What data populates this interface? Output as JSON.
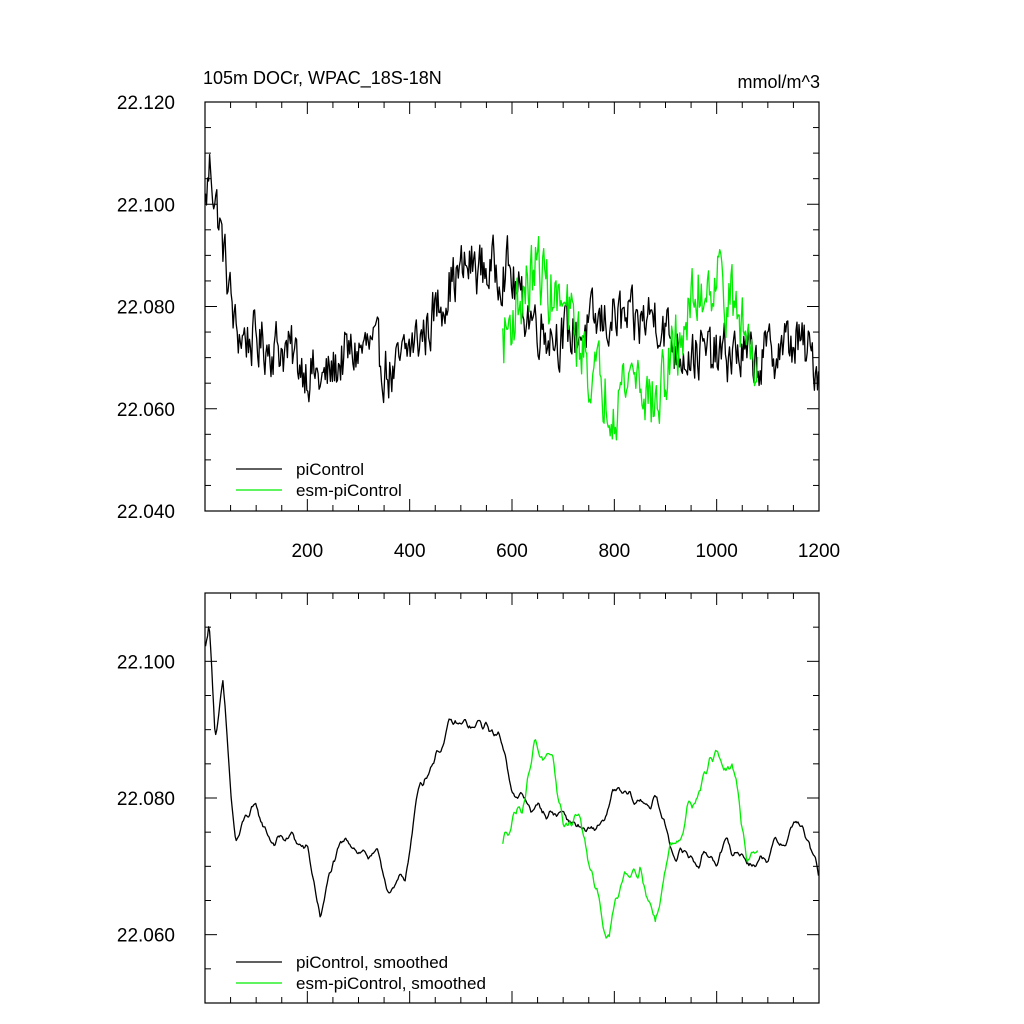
{
  "chart_data": [
    {
      "type": "line",
      "title": "105m DOCr, WPAC_18S-18N",
      "units": "mmol/m^3",
      "xlim": [
        0,
        1200
      ],
      "ylim": [
        22.04,
        22.12
      ],
      "xticks": [
        200,
        400,
        600,
        800,
        1000,
        1200
      ],
      "xtick_labels": [
        "200",
        "400",
        "600",
        "800",
        "1000",
        "1200"
      ],
      "yticks": [
        22.04,
        22.06,
        22.08,
        22.1,
        22.12
      ],
      "ytick_labels": [
        "22.040",
        "22.060",
        "22.080",
        "22.100",
        "22.120"
      ],
      "legend_position": "bottom-left",
      "series": [
        {
          "name": "piControl",
          "color": "#000000",
          "x_start": 1,
          "x_end": 1200,
          "keypoints": [
            [
              1,
              22.1
            ],
            [
              10,
              22.108
            ],
            [
              30,
              22.095
            ],
            [
              60,
              22.075
            ],
            [
              100,
              22.073
            ],
            [
              150,
              22.072
            ],
            [
              200,
              22.068
            ],
            [
              230,
              22.065
            ],
            [
              270,
              22.07
            ],
            [
              320,
              22.072
            ],
            [
              370,
              22.066
            ],
            [
              400,
              22.072
            ],
            [
              430,
              22.075
            ],
            [
              480,
              22.085
            ],
            [
              520,
              22.088
            ],
            [
              560,
              22.087
            ],
            [
              590,
              22.088
            ],
            [
              620,
              22.08
            ],
            [
              660,
              22.076
            ],
            [
              700,
              22.074
            ],
            [
              760,
              22.076
            ],
            [
              800,
              22.078
            ],
            [
              840,
              22.076
            ],
            [
              880,
              22.079
            ],
            [
              920,
              22.072
            ],
            [
              960,
              22.071
            ],
            [
              1000,
              22.07
            ],
            [
              1040,
              22.071
            ],
            [
              1080,
              22.069
            ],
            [
              1120,
              22.072
            ],
            [
              1160,
              22.073
            ],
            [
              1200,
              22.068
            ]
          ],
          "noise_amplitude": 0.0065
        },
        {
          "name": "esm-piControl",
          "color": "#00ee00",
          "x_start": 582,
          "x_end": 1080,
          "keypoints": [
            [
              582,
              22.073
            ],
            [
              600,
              22.078
            ],
            [
              620,
              22.082
            ],
            [
              650,
              22.088
            ],
            [
              680,
              22.082
            ],
            [
              720,
              22.076
            ],
            [
              760,
              22.066
            ],
            [
              800,
              22.062
            ],
            [
              840,
              22.068
            ],
            [
              880,
              22.06
            ],
            [
              920,
              22.072
            ],
            [
              960,
              22.082
            ],
            [
              1000,
              22.087
            ],
            [
              1040,
              22.078
            ],
            [
              1080,
              22.07
            ]
          ],
          "noise_amplitude": 0.008
        }
      ]
    },
    {
      "type": "line",
      "xlim": [
        0,
        1200
      ],
      "ylim": [
        22.05,
        22.11
      ],
      "yticks": [
        22.06,
        22.08,
        22.1
      ],
      "ytick_labels": [
        "22.060",
        "22.080",
        "22.100"
      ],
      "legend_position": "bottom-left",
      "series": [
        {
          "name": "piControl, smoothed",
          "color": "#000000",
          "x_start": 1,
          "x_end": 1200,
          "keypoints": [
            [
              1,
              22.102
            ],
            [
              8,
              22.106
            ],
            [
              20,
              22.09
            ],
            [
              35,
              22.096
            ],
            [
              50,
              22.08
            ],
            [
              60,
              22.073
            ],
            [
              90,
              22.078
            ],
            [
              130,
              22.074
            ],
            [
              170,
              22.074
            ],
            [
              200,
              22.072
            ],
            [
              225,
              22.063
            ],
            [
              250,
              22.07
            ],
            [
              290,
              22.074
            ],
            [
              330,
              22.071
            ],
            [
              370,
              22.066
            ],
            [
              390,
              22.068
            ],
            [
              420,
              22.082
            ],
            [
              450,
              22.087
            ],
            [
              480,
              22.09
            ],
            [
              520,
              22.09
            ],
            [
              560,
              22.09
            ],
            [
              580,
              22.088
            ],
            [
              610,
              22.08
            ],
            [
              650,
              22.078
            ],
            [
              700,
              22.078
            ],
            [
              760,
              22.074
            ],
            [
              800,
              22.08
            ],
            [
              840,
              22.079
            ],
            [
              880,
              22.08
            ],
            [
              910,
              22.073
            ],
            [
              960,
              22.071
            ],
            [
              1000,
              22.072
            ],
            [
              1040,
              22.072
            ],
            [
              1080,
              22.071
            ],
            [
              1120,
              22.073
            ],
            [
              1160,
              22.077
            ],
            [
              1200,
              22.068
            ]
          ],
          "noise_amplitude": 0.0022
        },
        {
          "name": "esm-piControl, smoothed",
          "color": "#00ee00",
          "x_start": 582,
          "x_end": 1080,
          "keypoints": [
            [
              582,
              22.073
            ],
            [
              600,
              22.078
            ],
            [
              620,
              22.08
            ],
            [
              645,
              22.089
            ],
            [
              670,
              22.085
            ],
            [
              700,
              22.076
            ],
            [
              730,
              22.078
            ],
            [
              760,
              22.066
            ],
            [
              790,
              22.06
            ],
            [
              820,
              22.07
            ],
            [
              850,
              22.072
            ],
            [
              880,
              22.062
            ],
            [
              910,
              22.073
            ],
            [
              950,
              22.08
            ],
            [
              1000,
              22.087
            ],
            [
              1030,
              22.083
            ],
            [
              1060,
              22.072
            ],
            [
              1080,
              22.074
            ]
          ],
          "noise_amplitude": 0.0028
        }
      ]
    }
  ]
}
